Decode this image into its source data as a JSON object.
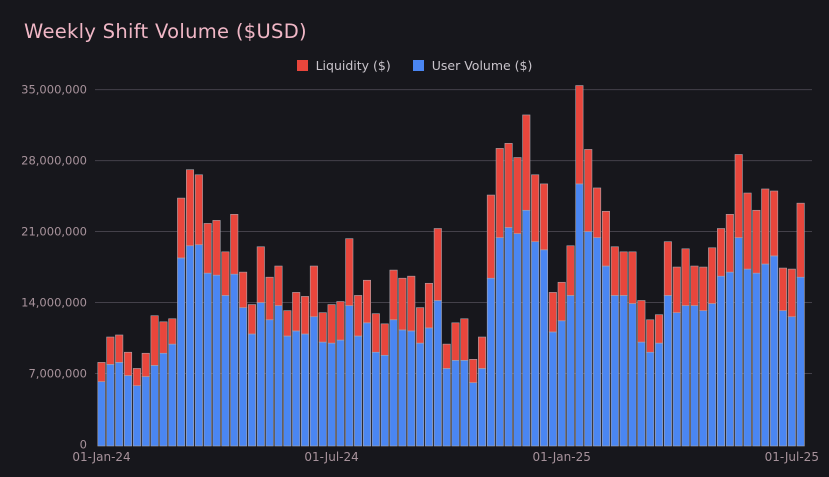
{
  "page": {
    "background": "#17171c"
  },
  "header": {
    "title": "Weekly Shift Volume ($USD)",
    "title_color": "#f0b7c6"
  },
  "legend": {
    "position": "top-center",
    "items": [
      {
        "label": "Liquidity ($)",
        "color": "#e8463c"
      },
      {
        "label": "User Volume ($)",
        "color": "#4a86f2"
      }
    ]
  },
  "chart_data": {
    "type": "bar",
    "stacked": true,
    "title": "Weekly Shift Volume ($USD)",
    "x_unit": "week",
    "value_unit": "USD millions",
    "grid": true,
    "legend_position": "top-center",
    "ylim_millions": [
      0,
      36.6
    ],
    "colors": {
      "liquidity": "#e8463c",
      "user_volume": "#4a86f2",
      "gridline": "#44414a",
      "bar_outline": "#aaa7ae",
      "tick_label": "#a7929b"
    },
    "y_ticks": [
      {
        "value_millions": 0,
        "label": "0"
      },
      {
        "value_millions": 7,
        "label": "7,000,000"
      },
      {
        "value_millions": 14,
        "label": "14,000,000"
      },
      {
        "value_millions": 21,
        "label": "21,000,000"
      },
      {
        "value_millions": 28,
        "label": "28,000,000"
      },
      {
        "value_millions": 35,
        "label": "35,000,000"
      }
    ],
    "x_ticks": [
      {
        "bar_index": 0,
        "label": "01-Jan-24"
      },
      {
        "bar_index": 26,
        "label": "01-Jul-24"
      },
      {
        "bar_index": 52,
        "label": "01-Jan-25"
      },
      {
        "bar_index": 78,
        "label": "01-Jul-25"
      }
    ],
    "series": [
      {
        "name": "User Volume ($)",
        "color": "#4a86f2",
        "stack_order": 0,
        "values_millions": [
          6.2,
          7.9,
          8.1,
          6.8,
          5.8,
          6.7,
          7.8,
          9.0,
          9.9,
          18.4,
          19.6,
          19.7,
          16.9,
          16.7,
          14.7,
          16.8,
          13.5,
          10.9,
          14.0,
          12.3,
          13.7,
          10.7,
          11.2,
          10.9,
          12.6,
          10.1,
          10.0,
          10.3,
          13.7,
          10.7,
          12.0,
          9.1,
          8.8,
          12.3,
          11.3,
          11.2,
          10.0,
          11.5,
          14.2,
          7.5,
          8.3,
          8.3,
          6.1,
          7.5,
          16.4,
          20.4,
          21.4,
          20.8,
          23.1,
          20.0,
          19.2,
          11.1,
          12.2,
          14.7,
          25.7,
          21.0,
          20.4,
          17.6,
          14.7,
          14.7,
          13.9,
          10.1,
          9.1,
          10.0,
          14.7,
          13.0,
          13.7,
          13.7,
          13.2,
          13.9,
          16.6,
          17.0,
          20.4,
          17.3,
          16.9,
          17.8,
          18.6,
          13.2,
          12.6,
          16.5
        ]
      },
      {
        "name": "Liquidity ($)",
        "color": "#e8463c",
        "stack_order": 1,
        "values_millions": [
          1.9,
          2.7,
          2.7,
          2.3,
          1.7,
          2.3,
          4.9,
          3.1,
          2.5,
          5.9,
          7.5,
          6.9,
          4.9,
          5.4,
          4.3,
          5.9,
          3.5,
          2.9,
          5.5,
          4.2,
          3.9,
          2.5,
          3.8,
          3.7,
          5.0,
          2.9,
          3.8,
          3.8,
          6.6,
          4.0,
          4.2,
          3.8,
          3.1,
          4.9,
          5.1,
          5.4,
          3.5,
          4.4,
          7.1,
          2.4,
          3.7,
          4.1,
          2.3,
          3.1,
          8.2,
          8.8,
          8.3,
          7.5,
          9.4,
          6.6,
          6.5,
          3.9,
          3.8,
          4.9,
          9.7,
          8.1,
          4.9,
          5.4,
          4.8,
          4.3,
          5.1,
          4.1,
          3.2,
          2.8,
          5.3,
          4.5,
          5.6,
          3.9,
          4.3,
          5.5,
          4.7,
          5.7,
          8.2,
          7.5,
          6.2,
          7.4,
          6.4,
          4.2,
          4.7,
          7.3
        ]
      }
    ]
  }
}
